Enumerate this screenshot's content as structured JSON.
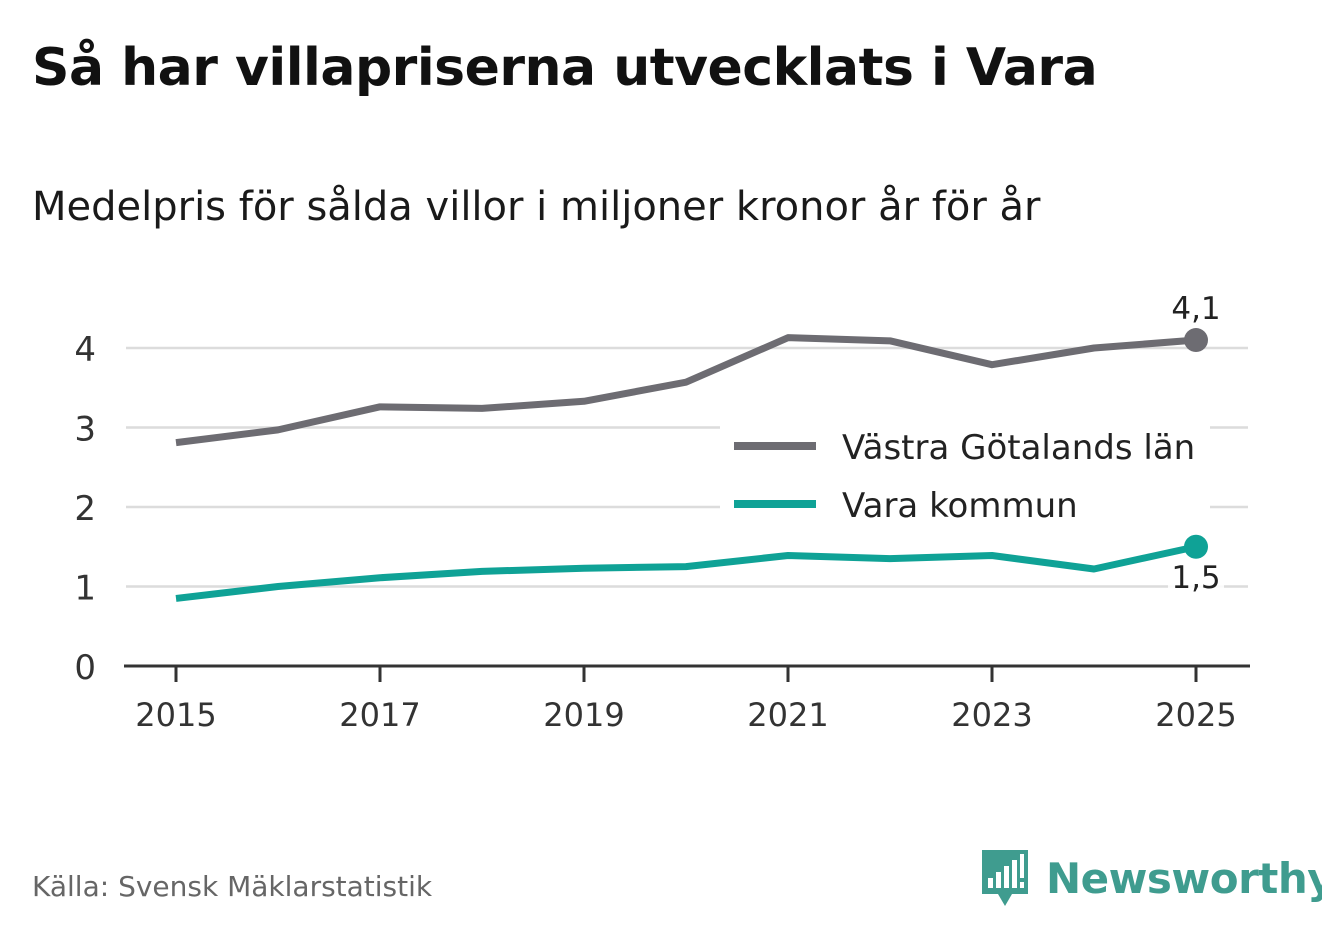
{
  "title": "Så har villapriserna utvecklats i Vara",
  "subtitle": "Medelpris för sålda villor i miljoner kronor år för år",
  "source": "Källa: Svensk Mäklarstatistik",
  "brand": {
    "name": "Newsworthy",
    "icon": "newsworthy-logo-icon",
    "color": "#3f9c8f"
  },
  "chart_data": {
    "type": "line",
    "title": "Så har villapriserna utvecklats i Vara",
    "subtitle": "Medelpris för sålda villor i miljoner kronor år för år",
    "xlabel": "",
    "ylabel": "",
    "x": [
      2015,
      2016,
      2017,
      2018,
      2019,
      2020,
      2021,
      2022,
      2023,
      2024,
      2025
    ],
    "x_ticks": [
      "2015",
      "2017",
      "2019",
      "2021",
      "2023",
      "2025"
    ],
    "x_tick_values": [
      2015,
      2017,
      2019,
      2021,
      2023,
      2025
    ],
    "xlim": [
      2014.5,
      2025.5
    ],
    "ylim": [
      0,
      4.5
    ],
    "y_ticks": [
      "0",
      "1",
      "2",
      "3",
      "4"
    ],
    "y_tick_values": [
      0,
      1,
      2,
      3,
      4
    ],
    "grid": true,
    "legend_position": "right",
    "series": [
      {
        "name": "Västra Götalands län",
        "color": "#6d6c72",
        "values": [
          2.81,
          2.97,
          3.26,
          3.24,
          3.33,
          3.57,
          4.13,
          4.09,
          3.79,
          4.0,
          4.1
        ],
        "end_label": "4,1"
      },
      {
        "name": "Vara kommun",
        "color": "#0fa296",
        "values": [
          0.85,
          1.0,
          1.11,
          1.19,
          1.23,
          1.25,
          1.39,
          1.35,
          1.39,
          1.22,
          1.5
        ],
        "end_label": "1,5"
      }
    ]
  }
}
